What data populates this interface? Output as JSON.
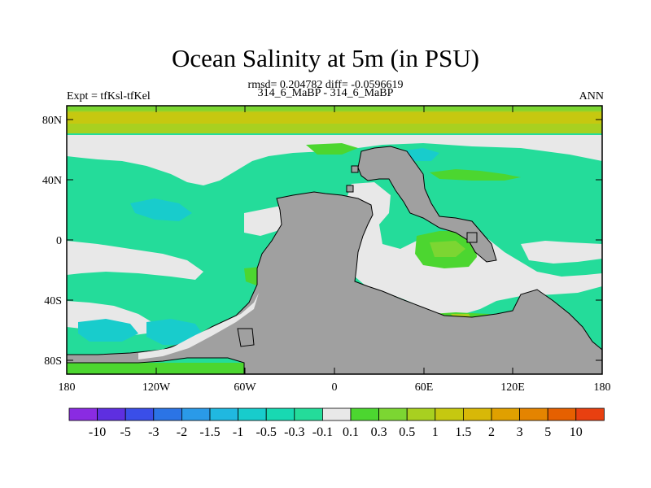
{
  "title": "Ocean Salinity at 5m (in PSU)",
  "stats_line": "rmsd= 0.204782 diff= -0.0596619",
  "cases_line": "314_6_MaBP - 314_6_MaBP",
  "expt_label": "Expt = tfKsl-tfKel",
  "season_label": "ANN",
  "lat_ticks": [
    "80N",
    "40N",
    "0",
    "40S",
    "80S"
  ],
  "lon_ticks": [
    "180",
    "120W",
    "60W",
    "0",
    "60E",
    "120E",
    "180"
  ],
  "colorbar": {
    "labels": [
      "-10",
      "-5",
      "-3",
      "-2",
      "-1.5",
      "-1",
      "-0.5",
      "-0.3",
      "-0.1",
      "0.1",
      "0.3",
      "0.5",
      "1",
      "1.5",
      "2",
      "3",
      "5",
      "10"
    ],
    "colors": [
      "#8a2be2",
      "#5e2fe0",
      "#3a4ee8",
      "#2b74e6",
      "#2a9ae8",
      "#20b8e0",
      "#18cccc",
      "#18d9b2",
      "#24dc9a",
      "#e8e8e8",
      "#4cd630",
      "#7cd632",
      "#a8d020",
      "#c6c810",
      "#d8b808",
      "#e0a000",
      "#e48400",
      "#e66000",
      "#e84010"
    ]
  },
  "colors": {
    "land": "#a0a0a0",
    "pos_low": "#4cd630",
    "neutral": "#e8e8e8",
    "neg_low": "#24dc9a",
    "pos_high": "#c6c810",
    "pos_mid": "#a8d020",
    "neg_mid": "#18cccc"
  }
}
